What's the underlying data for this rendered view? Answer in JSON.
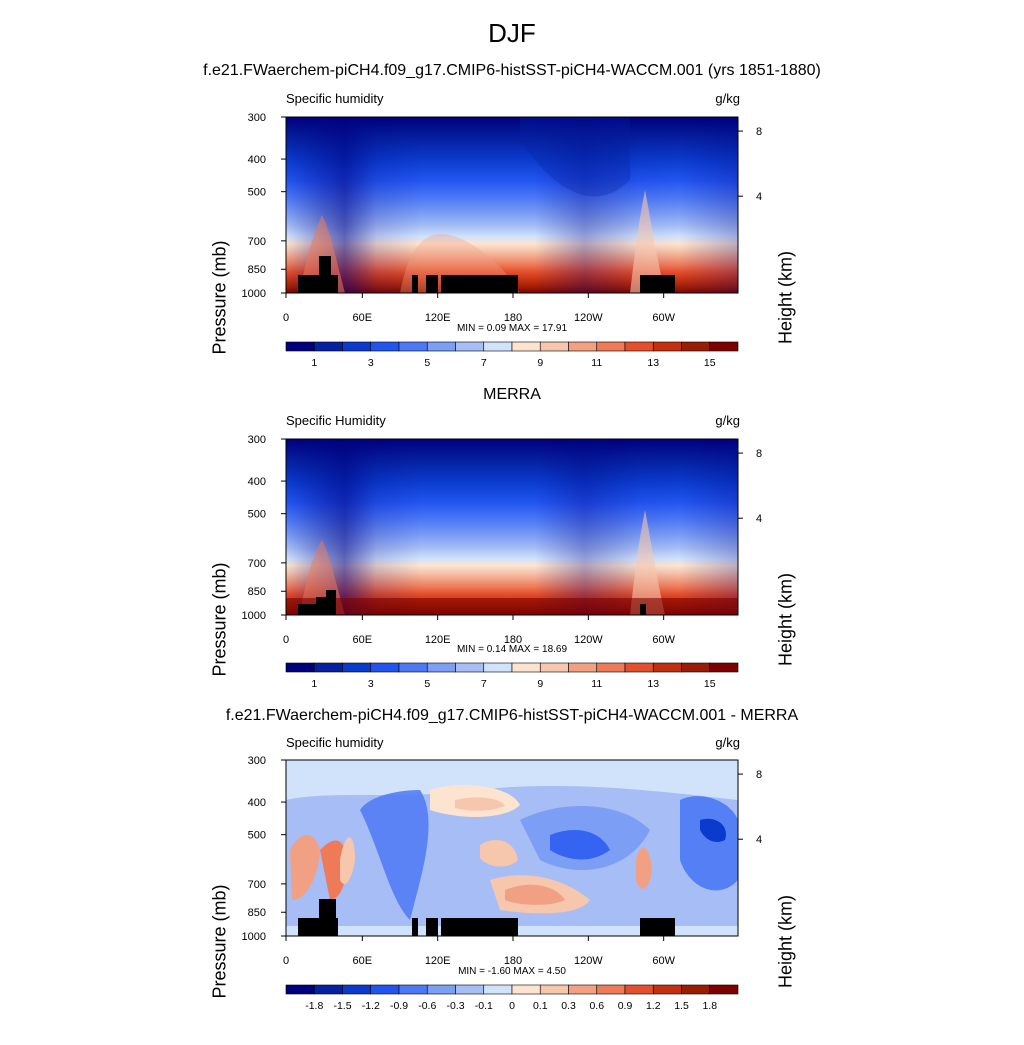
{
  "title": "DJF",
  "panels": [
    {
      "heading": "f.e21.FWaerchem-piCH4.f09_g17.CMIP6-histSST-piCH4-WACCM.001 (yrs 1851-1880)",
      "left_label": "Specific humidity",
      "right_label": "g/kg",
      "minmax": "MIN =   0.09  MAX =  17.91",
      "kind": "abs"
    },
    {
      "heading": "MERRA",
      "left_label": "Specific Humidity",
      "right_label": "g/kg",
      "minmax": "MIN =   0.14  MAX =  18.69",
      "kind": "abs"
    },
    {
      "heading": "f.e21.FWaerchem-piCH4.f09_g17.CMIP6-histSST-piCH4-WACCM.001 - MERRA",
      "left_label": "Specific humidity",
      "right_label": "g/kg",
      "minmax": "MIN =  -1.60  MAX =   4.50",
      "kind": "diff"
    }
  ],
  "axes": {
    "ylabel": "Pressure (mb)",
    "y2label": "Height (km)",
    "pressure_ticks": [
      "300",
      "400",
      "500",
      "700",
      "850",
      "1000"
    ],
    "height_ticks": [
      "8",
      "4"
    ],
    "x_ticks": [
      "0",
      "60E",
      "120E",
      "180",
      "120W",
      "60W"
    ]
  },
  "colorbars": {
    "abs": {
      "colors": [
        "#00007f",
        "#0520a0",
        "#0a3bcc",
        "#2255f0",
        "#4d79f5",
        "#7c9ef5",
        "#a6bef5",
        "#d1e2fb",
        "#fde4d0",
        "#f6c6ad",
        "#f2a083",
        "#ee7a57",
        "#e4502d",
        "#c2300f",
        "#9a1c05",
        "#7f0000"
      ],
      "labels": [
        "1",
        "3",
        "5",
        "7",
        "9",
        "11",
        "13",
        "15"
      ]
    },
    "diff": {
      "colors": [
        "#00007f",
        "#0520a0",
        "#0a3bcc",
        "#2255f0",
        "#4d79f5",
        "#7c9ef5",
        "#a6bef5",
        "#d1e2fb",
        "#fde4d0",
        "#f6c6ad",
        "#f2a083",
        "#ee7a57",
        "#e4502d",
        "#c2300f",
        "#9a1c05",
        "#7f0000"
      ],
      "labels": [
        "-1.8",
        "-1.5",
        "-1.2",
        "-0.9",
        "-0.6",
        "-0.3",
        "-0.1",
        "0",
        "0.1",
        "0.3",
        "0.6",
        "0.9",
        "1.2",
        "1.5",
        "1.8"
      ]
    }
  },
  "chart_data": [
    {
      "type": "heatmap",
      "title": "f.e21.FWaerchem-piCH4.f09_g17.CMIP6-histSST-piCH4-WACCM.001 (yrs 1851-1880)",
      "variable": "Specific humidity",
      "units": "g/kg",
      "x": [
        "0",
        "60E",
        "120E",
        "180",
        "120W",
        "60W"
      ],
      "y_pressure_mb": [
        300,
        400,
        500,
        700,
        850,
        1000
      ],
      "min": 0.09,
      "max": 17.91,
      "levels": [
        1,
        3,
        5,
        7,
        9,
        11,
        13,
        15
      ]
    },
    {
      "type": "heatmap",
      "title": "MERRA",
      "variable": "Specific Humidity",
      "units": "g/kg",
      "x": [
        "0",
        "60E",
        "120E",
        "180",
        "120W",
        "60W"
      ],
      "y_pressure_mb": [
        300,
        400,
        500,
        700,
        850,
        1000
      ],
      "min": 0.14,
      "max": 18.69,
      "levels": [
        1,
        3,
        5,
        7,
        9,
        11,
        13,
        15
      ]
    },
    {
      "type": "heatmap",
      "title": "f.e21.FWaerchem-piCH4.f09_g17.CMIP6-histSST-piCH4-WACCM.001 - MERRA",
      "variable": "Specific humidity",
      "units": "g/kg",
      "x": [
        "0",
        "60E",
        "120E",
        "180",
        "120W",
        "60W"
      ],
      "y_pressure_mb": [
        300,
        400,
        500,
        700,
        850,
        1000
      ],
      "min": -1.6,
      "max": 4.5,
      "levels": [
        -1.8,
        -1.5,
        -1.2,
        -0.9,
        -0.6,
        -0.3,
        -0.1,
        0,
        0.1,
        0.3,
        0.6,
        0.9,
        1.2,
        1.5,
        1.8
      ]
    }
  ]
}
